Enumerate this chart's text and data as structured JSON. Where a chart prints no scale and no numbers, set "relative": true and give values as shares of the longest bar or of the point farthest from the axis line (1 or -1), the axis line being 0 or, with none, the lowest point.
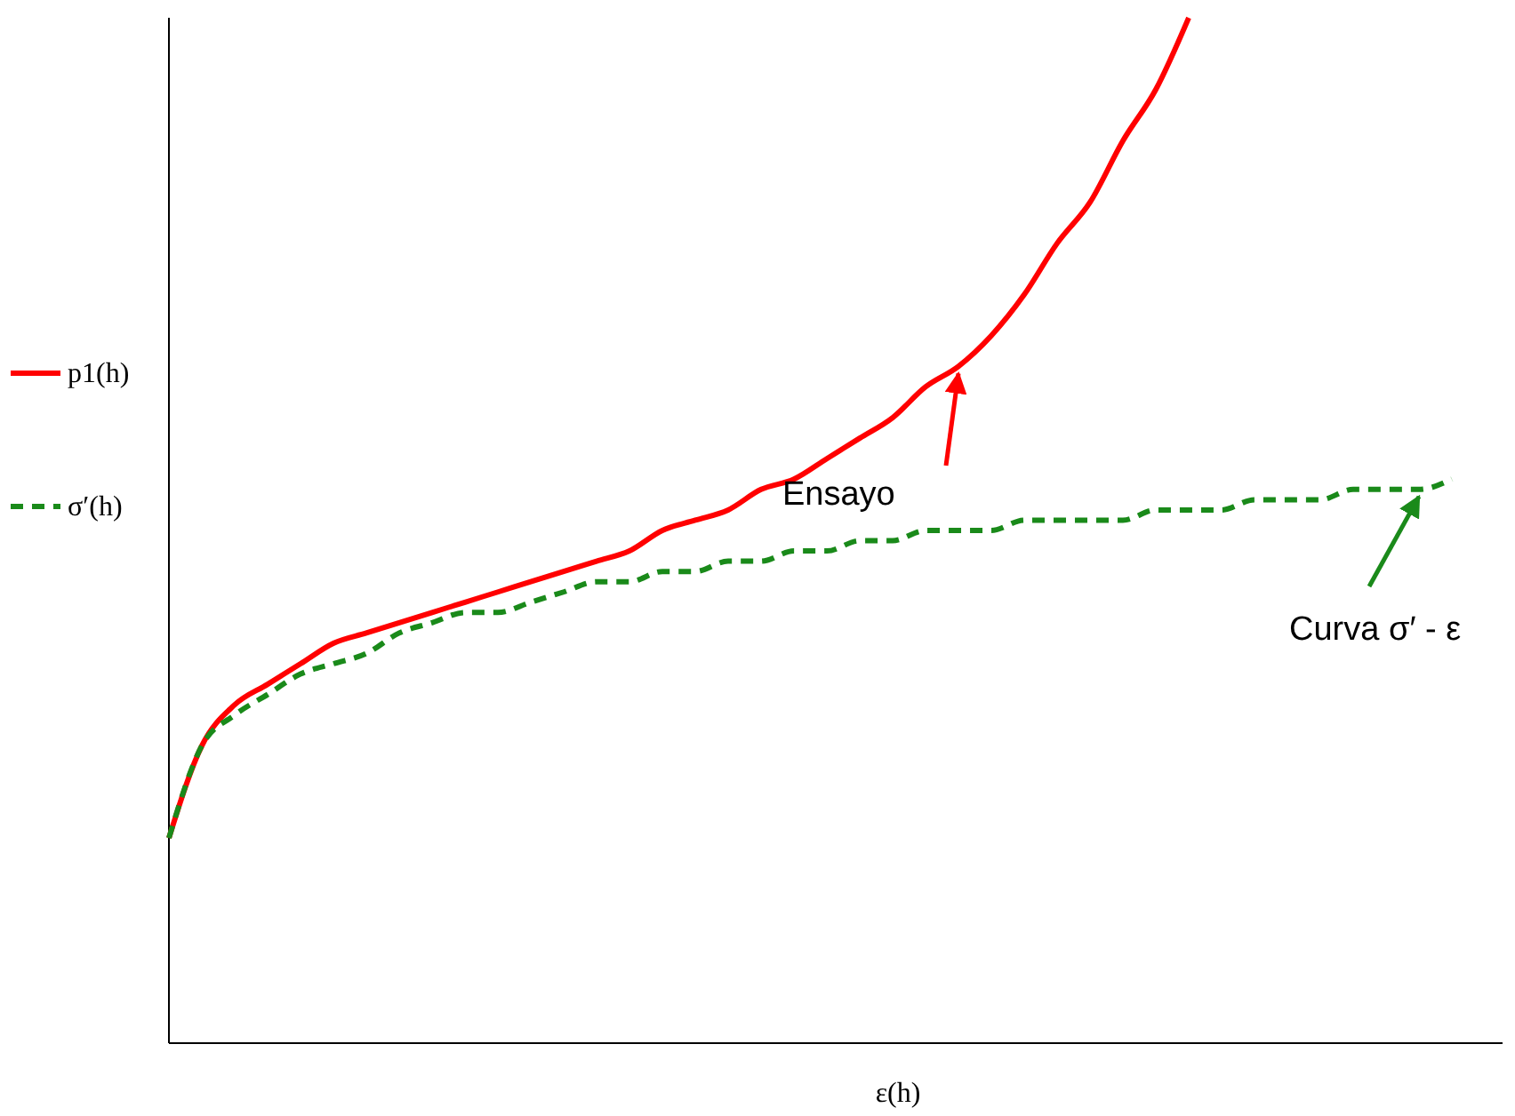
{
  "chart_data": {
    "type": "line",
    "relative": true,
    "xlabel": "ε(h)",
    "categories": [
      null,
      null,
      null,
      null,
      null,
      null,
      null,
      null,
      null,
      null,
      null,
      null,
      null,
      null,
      null,
      null,
      null,
      null,
      null,
      null,
      null,
      null,
      null,
      null,
      null,
      null,
      null,
      null,
      null,
      null,
      null,
      null,
      null,
      null,
      null,
      null,
      null,
      null,
      null,
      null,
      null
    ],
    "series": [
      {
        "name": "p1(h)",
        "color": "#ff0000",
        "line_style": "solid",
        "values": [
          0.2,
          0.29,
          0.33,
          0.35,
          0.37,
          0.39,
          0.4,
          0.41,
          0.42,
          0.43,
          0.44,
          0.45,
          0.46,
          0.47,
          0.48,
          0.5,
          0.51,
          0.52,
          0.54,
          0.55,
          0.57,
          0.59,
          0.61,
          0.64,
          0.66,
          0.69,
          0.73,
          0.78,
          0.82,
          0.88,
          0.93,
          1,
          null,
          null,
          null,
          null,
          null,
          null,
          null,
          null,
          null
        ]
      },
      {
        "name": "σ′(h)",
        "color": "#1a8a1a",
        "line_style": "dashed",
        "values": [
          0.2,
          0.29,
          0.32,
          0.34,
          0.36,
          0.37,
          0.38,
          0.4,
          0.41,
          0.42,
          0.42,
          0.43,
          0.44,
          0.45,
          0.45,
          0.46,
          0.46,
          0.47,
          0.47,
          0.48,
          0.48,
          0.49,
          0.49,
          0.5,
          0.5,
          0.5,
          0.51,
          0.51,
          0.51,
          0.51,
          0.52,
          0.52,
          0.52,
          0.53,
          0.53,
          0.53,
          0.54,
          0.54,
          0.54,
          0.55,
          null
        ]
      }
    ],
    "legend": "left",
    "annotations": [
      "Ensayo",
      "Curva σ′ - ε"
    ]
  }
}
